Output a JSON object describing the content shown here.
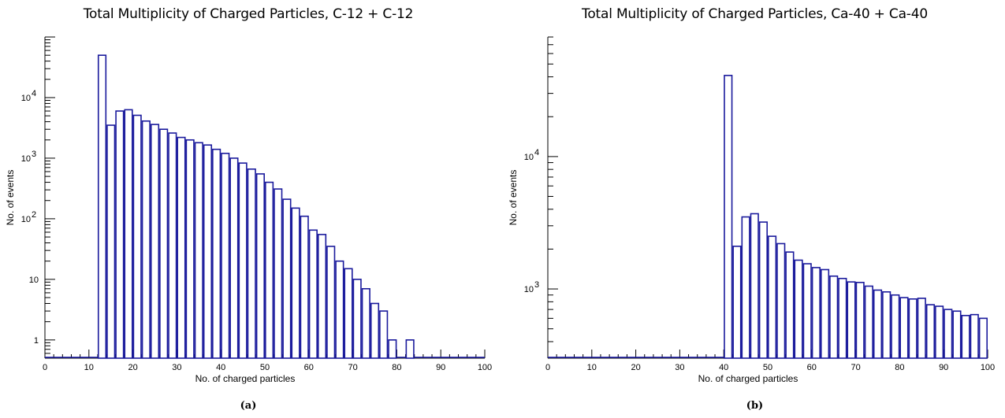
{
  "charts": [
    {
      "chart_data": {
        "type": "bar",
        "title": "Total Multiplicity of Charged Particles, C-12 + C-12",
        "xlabel": "No. of charged particles",
        "ylabel": "No. of events",
        "xlim": [
          0,
          100
        ],
        "ylim": [
          0.5,
          100000
        ],
        "yscale": "log",
        "bin_width": 2,
        "x": [
          0,
          2,
          4,
          6,
          8,
          10,
          12,
          14,
          16,
          18,
          20,
          22,
          24,
          26,
          28,
          30,
          32,
          34,
          36,
          38,
          40,
          42,
          44,
          46,
          48,
          50,
          52,
          54,
          56,
          58,
          60,
          62,
          64,
          66,
          68,
          70,
          72,
          74,
          76,
          78,
          80,
          82,
          84,
          86,
          88,
          90,
          92,
          94,
          96,
          98
        ],
        "values": [
          0,
          0,
          0,
          0,
          0,
          0,
          50000,
          3500,
          6000,
          6300,
          5100,
          4100,
          3600,
          3000,
          2600,
          2200,
          2000,
          1800,
          1650,
          1400,
          1200,
          1000,
          830,
          660,
          550,
          400,
          310,
          210,
          150,
          110,
          65,
          55,
          35,
          20,
          15,
          10,
          7,
          4,
          3,
          1,
          0,
          1,
          0,
          0,
          0,
          0,
          0,
          0,
          0,
          0
        ],
        "xticks": [
          0,
          10,
          20,
          30,
          40,
          50,
          60,
          70,
          80,
          90,
          100
        ],
        "xtick_labels": [
          "0",
          "10",
          "20",
          "30",
          "40",
          "50",
          "60",
          "70",
          "80",
          "90",
          "100"
        ],
        "ytick_labels": [
          {
            "value": 1,
            "label": "1"
          },
          {
            "value": 10,
            "label": "10"
          },
          {
            "value": 100,
            "label": "10",
            "sup": "2"
          },
          {
            "value": 1000,
            "label": "10",
            "sup": "3"
          },
          {
            "value": 10000,
            "label": "10",
            "sup": "4"
          }
        ],
        "color": "#1a1a9c"
      },
      "caption": "(a)"
    },
    {
      "chart_data": {
        "type": "bar",
        "title": "Total Multiplicity of Charged Particles, Ca-40 + Ca-40",
        "xlabel": "No. of charged particles",
        "ylabel": "No. of events",
        "xlim": [
          0,
          100
        ],
        "ylim": [
          300,
          80000
        ],
        "yscale": "log",
        "bin_width": 2,
        "x": [
          0,
          2,
          4,
          6,
          8,
          10,
          12,
          14,
          16,
          18,
          20,
          22,
          24,
          26,
          28,
          30,
          32,
          34,
          36,
          38,
          40,
          42,
          44,
          46,
          48,
          50,
          52,
          54,
          56,
          58,
          60,
          62,
          64,
          66,
          68,
          70,
          72,
          74,
          76,
          78,
          80,
          82,
          84,
          86,
          88,
          90,
          92,
          94,
          96,
          98
        ],
        "values": [
          0,
          0,
          0,
          0,
          0,
          0,
          0,
          0,
          0,
          0,
          0,
          0,
          0,
          0,
          0,
          0,
          0,
          0,
          0,
          0,
          41000,
          2100,
          3500,
          3700,
          3200,
          2500,
          2200,
          1900,
          1650,
          1550,
          1450,
          1400,
          1250,
          1200,
          1130,
          1120,
          1050,
          980,
          950,
          900,
          860,
          840,
          850,
          760,
          740,
          700,
          680,
          630,
          640,
          600
        ],
        "xticks": [
          0,
          10,
          20,
          30,
          40,
          50,
          60,
          70,
          80,
          90,
          100
        ],
        "xtick_labels": [
          "0",
          "10",
          "20",
          "30",
          "40",
          "50",
          "60",
          "70",
          "80",
          "90",
          "100"
        ],
        "ytick_labels": [
          {
            "value": 1000,
            "label": "10",
            "sup": "3"
          },
          {
            "value": 10000,
            "label": "10",
            "sup": "4"
          }
        ],
        "color": "#1a1a9c"
      },
      "caption": "(b)"
    }
  ]
}
